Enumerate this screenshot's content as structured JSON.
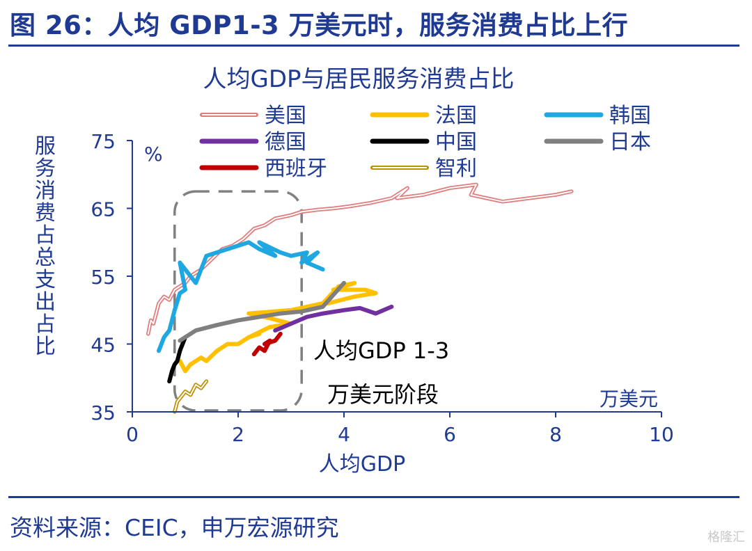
{
  "figure": {
    "title": "图 26：人均 GDP1-3 万美元时，服务消费占比上行",
    "source": "资料来源：CEIC，申万宏源研究",
    "watermark": "格隆汇"
  },
  "colors": {
    "brand": "#1f3a93",
    "axis": "#1f3a93",
    "annotation": "#000000",
    "box": "#808080"
  },
  "chart_data": {
    "type": "line",
    "title": "人均GDP与居民服务消费占比",
    "xlabel": "人均GDP",
    "ylabel": "服务消费占总支出占比",
    "x_unit": "万美元",
    "y_unit": "%",
    "xlim": [
      0,
      10
    ],
    "ylim": [
      35,
      75
    ],
    "xticks": [
      0,
      2,
      4,
      6,
      8,
      10
    ],
    "yticks": [
      35,
      45,
      55,
      65,
      75
    ],
    "grid": false,
    "legend_position": "top",
    "highlight_box": {
      "x": [
        0.8,
        3.2
      ],
      "y": [
        35,
        67.5
      ],
      "label": [
        "人均GDP 1-3",
        "万美元阶段"
      ]
    },
    "series": [
      {
        "name": "美国",
        "color": "#e07b7b",
        "style": "double",
        "x": [
          0.3,
          0.35,
          0.4,
          0.5,
          0.6,
          0.7,
          0.8,
          0.9,
          1.0,
          1.1,
          1.3,
          1.5,
          1.7,
          1.9,
          2.1,
          2.3,
          2.5,
          2.7,
          3.0,
          3.2,
          3.5,
          3.8,
          4.1,
          4.5,
          4.9,
          5.2,
          5.0,
          5.5,
          6.0,
          6.5,
          6.4,
          7.0,
          7.5,
          8.0,
          8.3
        ],
        "y": [
          46.5,
          48.5,
          48,
          51,
          52,
          51.5,
          53,
          53.5,
          54,
          55,
          56,
          57.5,
          59,
          59.5,
          60.5,
          62,
          62.5,
          63.5,
          64,
          64.5,
          64.8,
          65,
          65.3,
          65.8,
          66.5,
          68,
          66.5,
          67,
          68,
          68.5,
          67,
          66,
          66.5,
          67,
          67.5
        ]
      },
      {
        "name": "法国",
        "color": "#ffc000",
        "style": "solid",
        "x": [
          0.9,
          1.0,
          1.1,
          1.3,
          1.4,
          1.6,
          1.8,
          2.0,
          2.2,
          2.4,
          2.2,
          2.6,
          3.0,
          2.5,
          2.2,
          3.0,
          3.6,
          3.9,
          4.2,
          3.8,
          4.4,
          4.6,
          4.2,
          3.7
        ],
        "y": [
          42.5,
          41,
          42,
          43,
          42.5,
          44,
          45,
          45,
          46,
          46.5,
          46,
          47.5,
          48,
          49,
          49.5,
          50,
          51,
          53.5,
          54,
          53,
          53,
          52.5,
          52,
          51
        ]
      },
      {
        "name": "韩国",
        "color": "#1ea7e1",
        "style": "solid",
        "x": [
          0.5,
          0.6,
          0.7,
          0.8,
          0.9,
          1.0,
          0.9,
          1.2,
          1.3,
          1.4,
          1.6,
          1.8,
          2.0,
          2.2,
          2.4,
          2.7,
          2.4,
          2.8,
          3.0,
          3.3,
          3.2,
          3.5,
          3.3,
          3.6
        ],
        "y": [
          44,
          46,
          47,
          50,
          52.5,
          53,
          57,
          54,
          56,
          58,
          58.5,
          59,
          59.5,
          60,
          59,
          58,
          60,
          58.5,
          58,
          58.5,
          57,
          58.5,
          57,
          56
        ]
      },
      {
        "name": "德国",
        "color": "#7030a0",
        "style": "solid",
        "x": [
          2.7,
          3.0,
          3.3,
          3.6,
          4.0,
          4.3,
          4.6,
          4.9
        ],
        "y": [
          47,
          48,
          49,
          49.5,
          50,
          50.3,
          49.5,
          50.5
        ]
      },
      {
        "name": "中国",
        "color": "#000000",
        "style": "solid",
        "x": [
          0.7,
          0.75,
          0.8,
          0.85,
          0.9,
          0.95,
          1.0
        ],
        "y": [
          39.5,
          41,
          42,
          42.5,
          44,
          45,
          46
        ]
      },
      {
        "name": "日本",
        "color": "#7f7f7f",
        "style": "solid",
        "x": [
          0.9,
          1.2,
          1.6,
          2.0,
          2.4,
          2.8,
          3.2,
          3.6,
          4.0
        ],
        "y": [
          45.5,
          47,
          47.8,
          48.5,
          49,
          49.5,
          49.8,
          50.5,
          54
        ]
      },
      {
        "name": "西班牙",
        "color": "#c00000",
        "style": "solid",
        "x": [
          2.3,
          2.4,
          2.5,
          2.6,
          2.5,
          2.7,
          2.8
        ],
        "y": [
          43.5,
          44.5,
          44,
          45.5,
          45,
          45.5,
          46.5
        ]
      },
      {
        "name": "智利",
        "color": "#bf9000",
        "style": "double",
        "x": [
          0.8,
          0.85,
          0.9,
          1.0,
          1.1,
          1.2,
          1.3,
          1.4
        ],
        "y": [
          35,
          36.5,
          37,
          38,
          37.5,
          39,
          38.5,
          39.5
        ]
      }
    ]
  }
}
